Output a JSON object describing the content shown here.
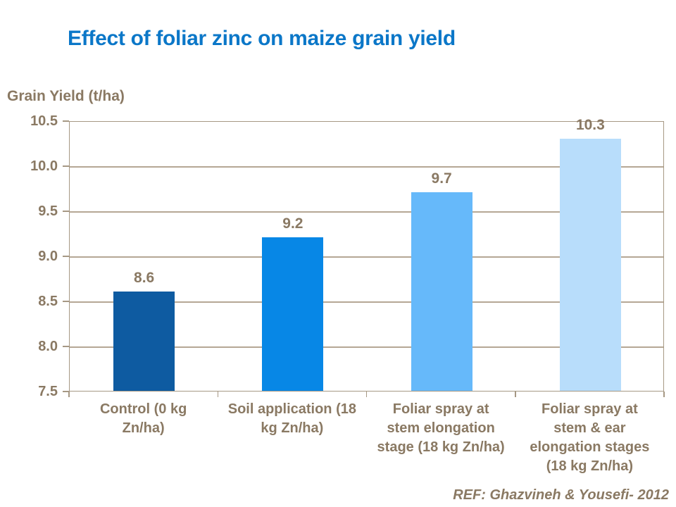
{
  "title": "Effect of foliar zinc on maize grain yield",
  "footer": {
    "ref_label": "REF: Ghazvineh & Yousefi- 2012"
  },
  "colors": {
    "title_blue": "#0b77c8",
    "text_brown": "#8a7963",
    "gridline": "#b5a795",
    "axis_border": "#a69884"
  },
  "chart_data": {
    "type": "bar",
    "title": "Effect of foliar zinc on maize grain yield",
    "ylabel": "Grain Yield (t/ha)",
    "xlabel": "",
    "categories": [
      "Control (0 kg Zn/ha)",
      "Soil application (18 kg Zn/ha)",
      "Foliar spray at stem elongation stage (18 kg Zn/ha)",
      "Foliar spray at stem & ear elongation stages (18 kg Zn/ha)"
    ],
    "values": [
      8.6,
      9.2,
      9.7,
      10.3
    ],
    "value_labels": [
      "8.6",
      "9.2",
      "9.7",
      "10.3"
    ],
    "bar_colors": [
      "#0e5ba1",
      "#0787e6",
      "#66b9fa",
      "#b8ddfb"
    ],
    "ylim": [
      7.5,
      10.5
    ],
    "ytick_step": 0.5,
    "yticks": [
      "10.5",
      "10.0",
      "9.5",
      "9.0",
      "8.5",
      "8.0",
      "7.5"
    ],
    "grid": true,
    "legend_position": "none"
  }
}
